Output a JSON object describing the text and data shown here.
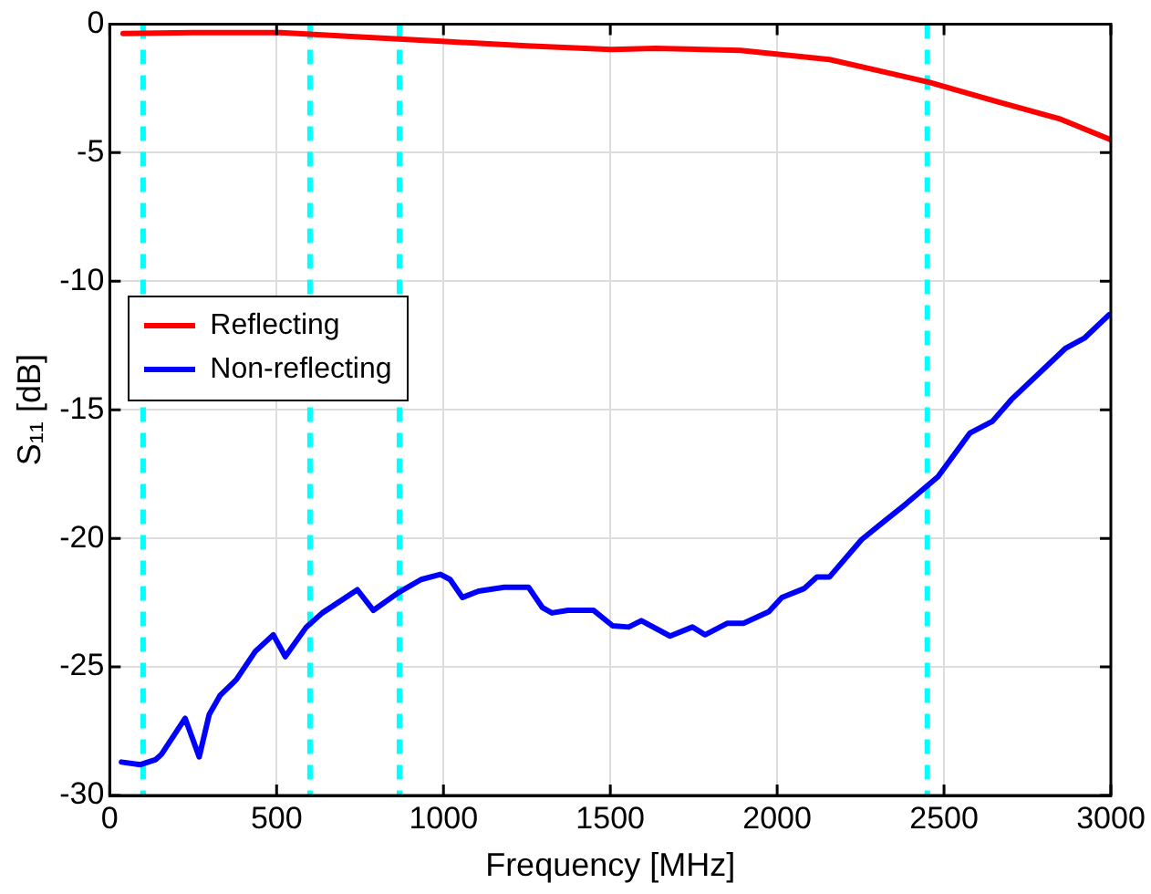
{
  "chart_data": {
    "type": "line",
    "xlabel": "Frequency [MHz]",
    "ylabel": "S₁₁ [dB]",
    "xlim": [
      0,
      3000
    ],
    "xticks": [
      0,
      500,
      1000,
      1500,
      2000,
      2500,
      3000
    ],
    "ylim": [
      -30,
      0
    ],
    "yticks": [
      -30,
      -25,
      -20,
      -15,
      -10,
      -5,
      0
    ],
    "grid": true,
    "legend": "left",
    "marker": "none",
    "line_style": "solid",
    "series": [
      {
        "name": "Reflecting",
        "color": "#ff0000",
        "x": [
          40,
          250,
          512,
          750,
          1008,
          1250,
          1503,
          1635,
          1891,
          2157,
          2300,
          2455,
          2654,
          2850,
          3000
        ],
        "values": [
          -0.37,
          -0.33,
          -0.33,
          -0.5,
          -0.68,
          -0.85,
          -0.99,
          -0.94,
          -1.02,
          -1.38,
          -1.8,
          -2.26,
          -3.0,
          -3.7,
          -4.5
        ]
      },
      {
        "name": "Non-reflecting",
        "color": "#0000ff",
        "x": [
          35,
          92,
          138,
          155,
          226,
          268,
          298,
          331,
          379,
          436,
          490,
          526,
          589,
          637,
          742,
          790,
          866,
          933,
          991,
          1020,
          1057,
          1105,
          1182,
          1255,
          1297,
          1325,
          1373,
          1450,
          1507,
          1555,
          1593,
          1679,
          1746,
          1784,
          1851,
          1899,
          1975,
          2014,
          2081,
          2119,
          2157,
          2253,
          2310,
          2387,
          2482,
          2578,
          2645,
          2702,
          2865,
          2922,
          2995
        ],
        "values": [
          -28.7,
          -28.8,
          -28.6,
          -28.4,
          -27.0,
          -28.5,
          -26.85,
          -26.1,
          -25.5,
          -24.4,
          -23.75,
          -24.6,
          -23.45,
          -22.9,
          -22.0,
          -22.8,
          -22.1,
          -21.6,
          -21.4,
          -21.6,
          -22.3,
          -22.05,
          -21.9,
          -21.9,
          -22.7,
          -22.9,
          -22.8,
          -22.8,
          -23.4,
          -23.45,
          -23.2,
          -23.8,
          -23.45,
          -23.75,
          -23.3,
          -23.3,
          -22.85,
          -22.3,
          -21.95,
          -21.5,
          -21.5,
          -20.05,
          -19.45,
          -18.65,
          -17.6,
          -15.9,
          -15.45,
          -14.6,
          -12.6,
          -12.2,
          -11.3
        ]
      }
    ],
    "ref_lines": [
      {
        "axis": "x",
        "value": 100,
        "color": "#00ffff",
        "line_style": "dashed"
      },
      {
        "axis": "x",
        "value": 600,
        "color": "#00ffff",
        "line_style": "dashed"
      },
      {
        "axis": "x",
        "value": 868,
        "color": "#00ffff",
        "line_style": "dashed"
      },
      {
        "axis": "x",
        "value": 2450,
        "color": "#00ffff",
        "line_style": "dashed"
      }
    ]
  }
}
